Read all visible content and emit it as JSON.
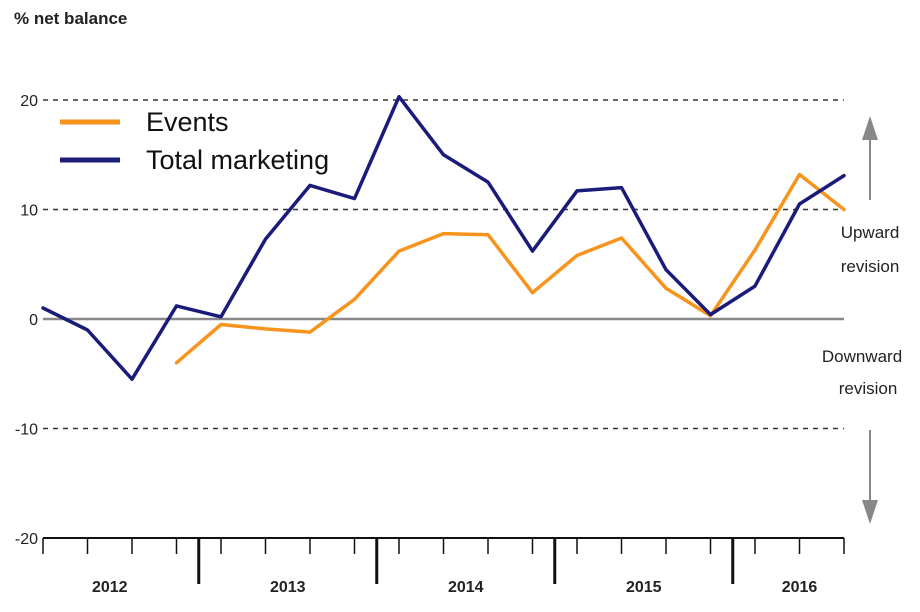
{
  "chart_data": {
    "type": "line",
    "ylabel": "% net balance",
    "ylim": [
      -20,
      20
    ],
    "yticks": [
      20,
      10,
      0,
      -10,
      -20
    ],
    "dashed_gridlines": [
      20,
      10,
      -10
    ],
    "zero_line": true,
    "years": [
      "2012",
      "2013",
      "2014",
      "2015",
      "2016"
    ],
    "quarters_per_year": 4,
    "series": [
      {
        "name": "Events",
        "color": "#f7941d",
        "values": [
          null,
          null,
          null,
          -4,
          -0.5,
          -0.9,
          -1.2,
          1.8,
          6.2,
          7.8,
          7.7,
          2.4,
          5.8,
          7.4,
          2.8,
          0.3,
          6.3,
          13.2,
          10
        ]
      },
      {
        "name": "Total marketing",
        "color": "#1b1b7a",
        "values": [
          1,
          -1,
          -5.5,
          1.2,
          0.2,
          7.3,
          12.2,
          11,
          20.3,
          15,
          12.5,
          6.2,
          11.7,
          12,
          4.5,
          0.4,
          3,
          10.5,
          13.1
        ]
      }
    ],
    "legend_position": "top-left",
    "annotations": {
      "upward": [
        "Upward",
        "revision"
      ],
      "downward": [
        "Downward",
        "revision"
      ]
    }
  }
}
